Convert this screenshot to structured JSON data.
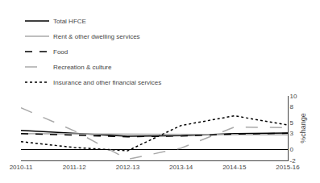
{
  "chart_data": {
    "type": "line",
    "categories": [
      "2010-11",
      "2011-12",
      "2012-13",
      "2013-14",
      "2014-15",
      "2015-16"
    ],
    "series": [
      {
        "name": "Total HFCE",
        "color": "#000000",
        "line_style": "solid",
        "values": [
          3.6,
          3.1,
          2.5,
          2.6,
          3.0,
          3.1
        ]
      },
      {
        "name": "Rent & other dwelling services",
        "color": "#aaaaaa",
        "line_style": "solid",
        "values": [
          3.0,
          2.95,
          2.9,
          2.85,
          2.8,
          2.75
        ]
      },
      {
        "name": "Food",
        "color": "#000000",
        "line_style": "dash",
        "values": [
          3.0,
          2.7,
          2.4,
          2.55,
          2.9,
          3.05
        ]
      },
      {
        "name": "Recreation & culture",
        "color": "#aaaaaa",
        "line_style": "longdash",
        "values": [
          7.8,
          3.5,
          -1.8,
          0.3,
          4.2,
          4.1
        ]
      },
      {
        "name": "Insurance and other financial services",
        "color": "#000000",
        "line_style": "dot",
        "values": [
          1.5,
          0.4,
          -0.2,
          4.5,
          6.3,
          4.6
        ]
      }
    ],
    "ylabel": "%change",
    "ylim": [
      -2,
      10
    ],
    "yticks": [
      -2,
      0,
      3,
      5,
      8,
      10
    ],
    "grid": false,
    "legend": "upper left"
  }
}
